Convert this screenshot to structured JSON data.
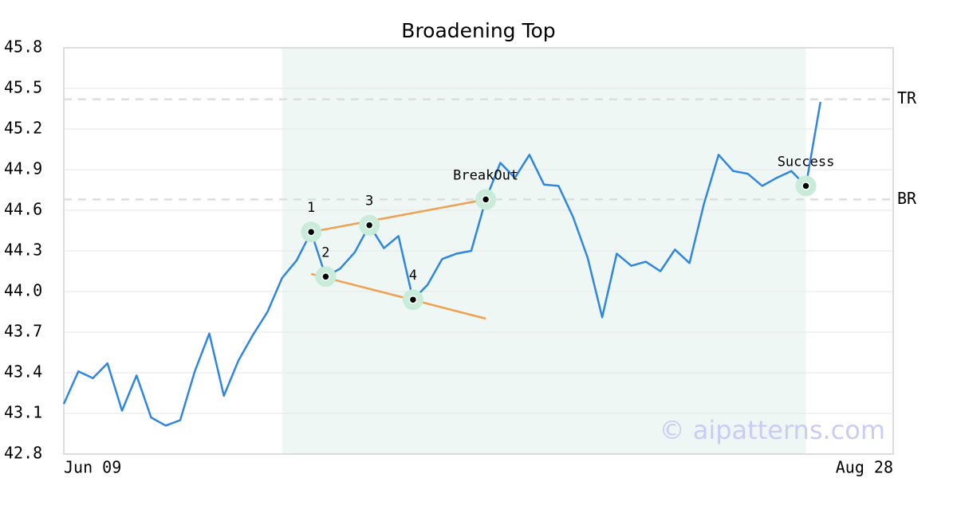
{
  "chart_data": {
    "type": "line",
    "title": "Broadening Top",
    "x": [
      0,
      1,
      2,
      3,
      4,
      5,
      6,
      7,
      8,
      9,
      10,
      11,
      12,
      13,
      14,
      15,
      16,
      17,
      18,
      19,
      20,
      21,
      22,
      23,
      24,
      25,
      26,
      27,
      28,
      29,
      30,
      31,
      32,
      33,
      34,
      35,
      36,
      37,
      38,
      39,
      40,
      41,
      42,
      43,
      44,
      45,
      46,
      47,
      48,
      49,
      50,
      51,
      52
    ],
    "values": [
      43.17,
      43.41,
      43.36,
      43.47,
      43.12,
      43.38,
      43.07,
      43.01,
      43.05,
      43.41,
      43.69,
      43.23,
      43.49,
      43.68,
      43.85,
      44.1,
      44.23,
      44.44,
      44.11,
      44.17,
      44.29,
      44.49,
      44.32,
      44.41,
      43.94,
      44.05,
      44.24,
      44.28,
      44.3,
      44.68,
      44.95,
      44.84,
      45.01,
      44.79,
      44.78,
      44.55,
      44.25,
      43.81,
      44.28,
      44.19,
      44.22,
      44.15,
      44.31,
      44.21,
      44.65,
      45.01,
      44.89,
      44.87,
      44.78,
      44.84,
      44.89,
      44.78,
      45.4
    ],
    "color": "#2f86e0",
    "xlim": [
      0,
      57
    ],
    "xticks": [
      {
        "value": 0,
        "label": "Jun 09"
      },
      {
        "value": 57,
        "label": "Aug 28"
      }
    ],
    "ylim": [
      42.8,
      45.8
    ],
    "yticks": [
      42.8,
      43.1,
      43.4,
      43.7,
      {
        "value": 44,
        "label": "44.0"
      },
      44.3,
      44.6,
      44.9,
      45.2,
      45.5,
      45.8
    ],
    "grid": true,
    "shade": [
      15,
      51
    ],
    "levels": [
      {
        "label": "TR",
        "value": 45.42
      },
      {
        "label": "BR",
        "value": 44.68
      }
    ],
    "points": [
      {
        "label": "1",
        "x": 17,
        "y": 44.44
      },
      {
        "label": "2",
        "x": 18,
        "y": 44.11
      },
      {
        "label": "3",
        "x": 21,
        "y": 44.49
      },
      {
        "label": "4",
        "x": 24,
        "y": 43.94
      },
      {
        "label": "BreakOut",
        "x": 29,
        "y": 44.68
      },
      {
        "label": "Success",
        "x": 51,
        "y": 44.78
      }
    ],
    "trendlines": [
      {
        "x": [
          17,
          29
        ],
        "y": [
          44.44,
          44.68
        ]
      },
      {
        "x": [
          17,
          29
        ],
        "y": [
          44.13,
          43.8
        ]
      }
    ],
    "watermark": "© aipatterns.com"
  }
}
